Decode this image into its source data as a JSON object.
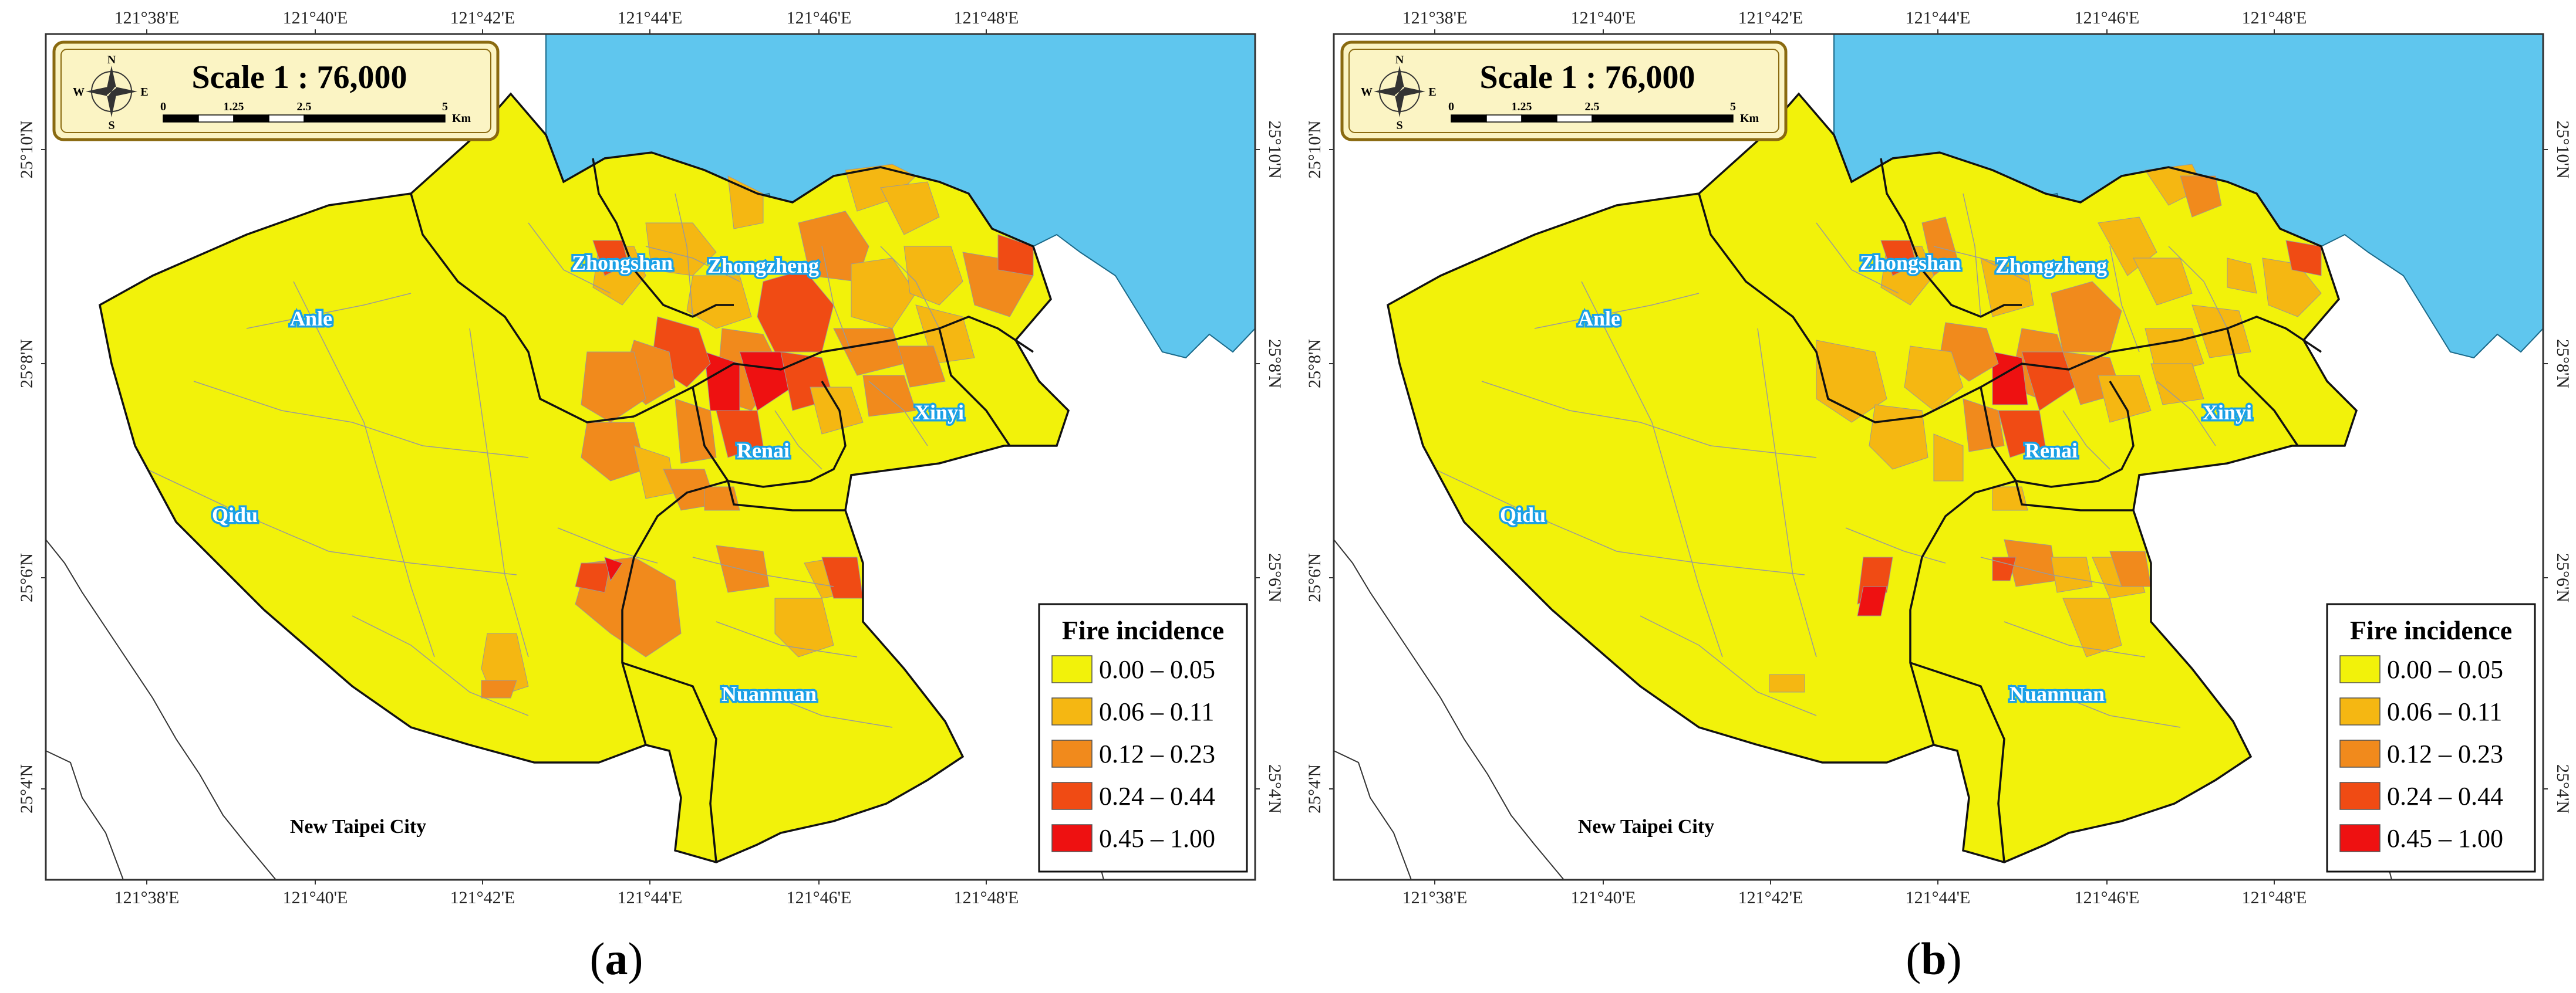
{
  "panels": [
    {
      "id": "a",
      "caption_letter": "a",
      "scale_title": "Scale 1 : 76,000",
      "scale_ticks": [
        "0",
        "1.25",
        "2.5",
        "5"
      ],
      "scale_unit": "Km",
      "compass": [
        "N",
        "E",
        "S",
        "W"
      ],
      "top_ticks": [
        "121°38'E",
        "121°40'E",
        "121°42'E",
        "121°44'E",
        "121°46'E",
        "121°48'E"
      ],
      "bottom_ticks": [
        "121°38'E",
        "121°40'E",
        "121°42'E",
        "121°44'E",
        "121°46'E",
        "121°48'E"
      ],
      "left_ticks": [
        "25°10'N",
        "25°8'N",
        "25°6'N",
        "25°4'N"
      ],
      "right_ticks": [
        "25°10'N",
        "25°8'N",
        "25°6'N",
        "25°4'N"
      ],
      "districts": [
        "Zhongshan",
        "Zhongzheng",
        "Anle",
        "Xinyi",
        "Renai",
        "Qidu",
        "Nuannuan"
      ],
      "outside_label": "New Taipei City",
      "legend": {
        "title": "Fire incidence",
        "classes": [
          {
            "label": "0.00 – 0.05",
            "color": "#f2f20a"
          },
          {
            "label": "0.06 – 0.11",
            "color": "#f5b712"
          },
          {
            "label": "0.12 – 0.23",
            "color": "#f18a1c"
          },
          {
            "label": "0.24 – 0.44",
            "color": "#f04b14"
          },
          {
            "label": "0.45 – 1.00",
            "color": "#ee1111"
          }
        ]
      }
    },
    {
      "id": "b",
      "caption_letter": "b",
      "scale_title": "Scale 1 : 76,000",
      "scale_ticks": [
        "0",
        "1.25",
        "2.5",
        "5"
      ],
      "scale_unit": "Km",
      "compass": [
        "N",
        "E",
        "S",
        "W"
      ],
      "top_ticks": [
        "121°38'E",
        "121°40'E",
        "121°42'E",
        "121°44'E",
        "121°46'E",
        "121°48'E"
      ],
      "bottom_ticks": [
        "121°38'E",
        "121°40'E",
        "121°42'E",
        "121°44'E",
        "121°46'E",
        "121°48'E"
      ],
      "left_ticks": [
        "25°10'N",
        "25°8'N",
        "25°6'N",
        "25°4'N"
      ],
      "right_ticks": [
        "25°10'N",
        "25°8'N",
        "25°6'N",
        "25°4'N"
      ],
      "districts": [
        "Zhongshan",
        "Zhongzheng",
        "Anle",
        "Xinyi",
        "Renai",
        "Qidu",
        "Nuannuan"
      ],
      "outside_label": "New Taipei City",
      "legend": {
        "title": "Fire incidence",
        "classes": [
          {
            "label": "0.00 – 0.05",
            "color": "#f2f20a"
          },
          {
            "label": "0.06 – 0.11",
            "color": "#f5b712"
          },
          {
            "label": "0.12 – 0.23",
            "color": "#f18a1c"
          },
          {
            "label": "0.24 – 0.44",
            "color": "#f04b14"
          },
          {
            "label": "0.45 – 1.00",
            "color": "#ee1111"
          }
        ]
      }
    }
  ],
  "colors": {
    "sea": "#5fc6ee",
    "land": "#f2f20a",
    "frame": "#333333",
    "scale_box_fill": "#fbf4c4",
    "scale_box_border": "#8a6a10"
  }
}
